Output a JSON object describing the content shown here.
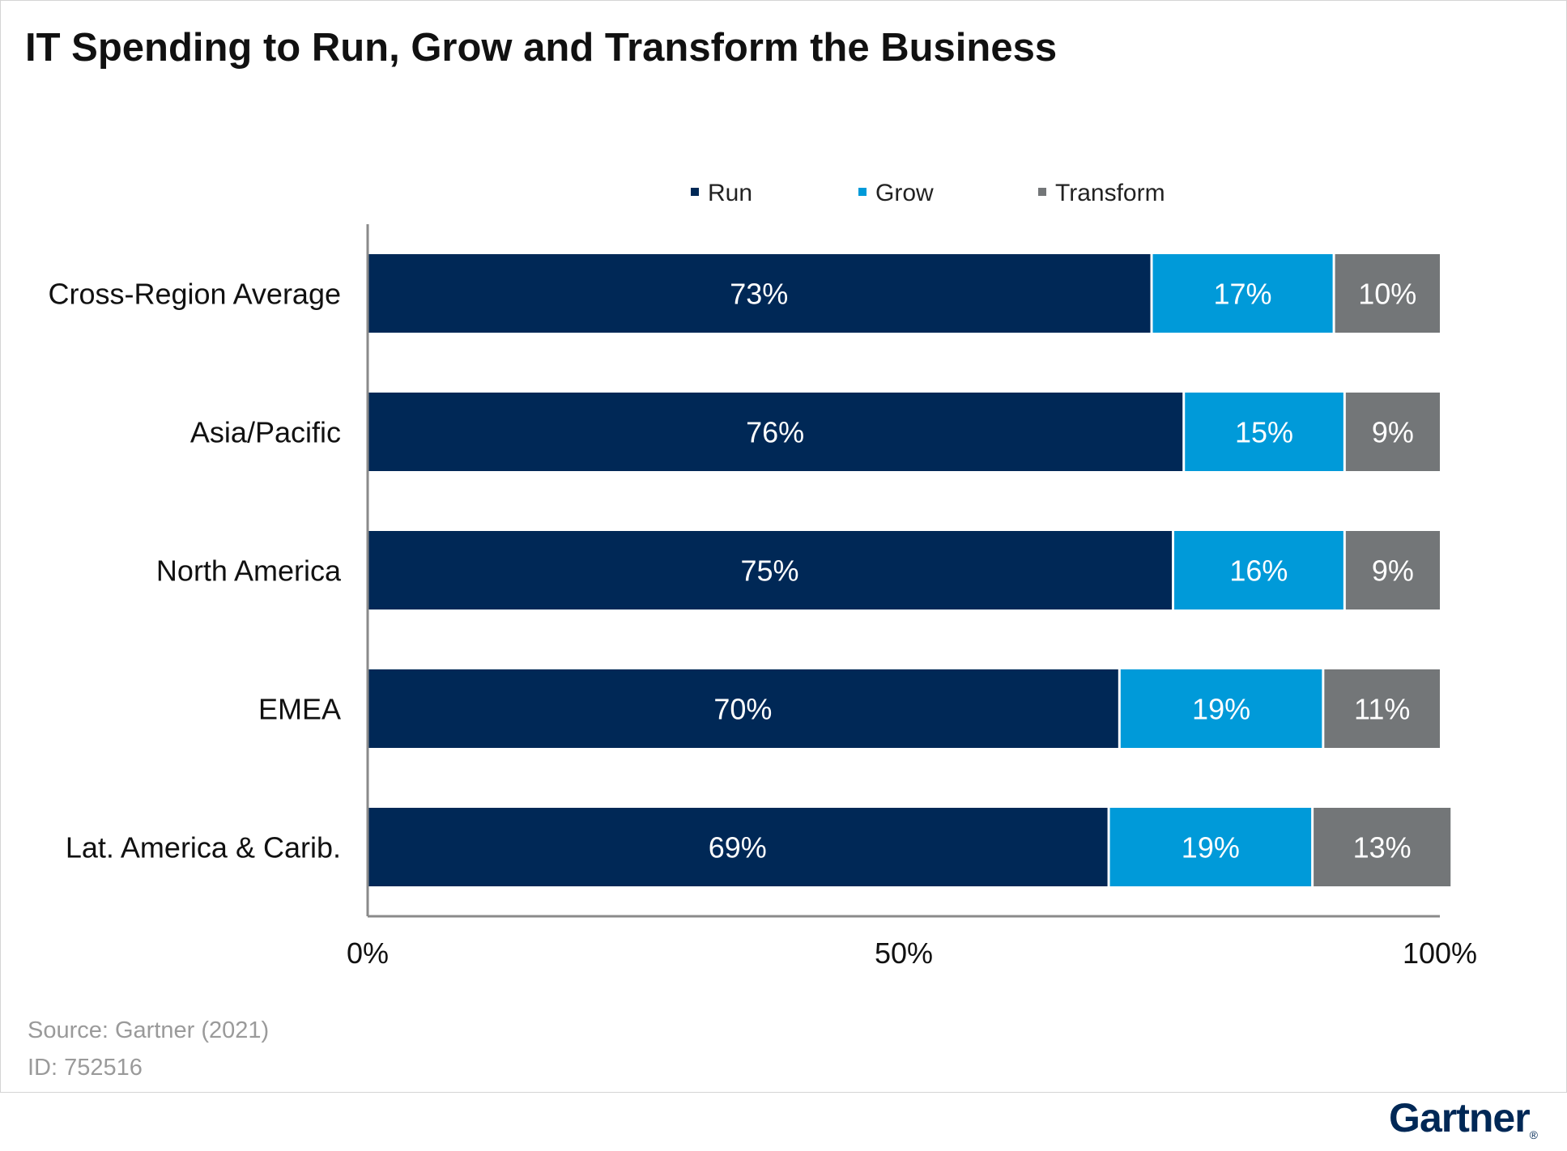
{
  "chart_data": {
    "type": "bar",
    "orientation": "horizontal",
    "stacked": true,
    "title": "IT Spending to Run, Grow and Transform the Business",
    "categories": [
      "Cross-Region Average",
      "Asia/Pacific",
      "North America",
      "EMEA",
      "Lat. America & Carib."
    ],
    "series": [
      {
        "name": "Run",
        "color": "#002856",
        "values": [
          73,
          76,
          75,
          70,
          69
        ],
        "labels": [
          "73%",
          "76%",
          "75%",
          "70%",
          "69%"
        ]
      },
      {
        "name": "Grow",
        "color": "#009ad9",
        "values": [
          17,
          15,
          16,
          19,
          19
        ],
        "labels": [
          "17%",
          "15%",
          "16%",
          "19%",
          "19%"
        ]
      },
      {
        "name": "Transform",
        "color": "#737678",
        "values": [
          10,
          9,
          9,
          11,
          13
        ],
        "labels": [
          "10%",
          "9%",
          "9%",
          "11%",
          "13%"
        ]
      }
    ],
    "xlim": [
      0,
      100
    ],
    "x_ticks": [
      0,
      50,
      100
    ],
    "x_tick_labels": [
      "0%",
      "50%",
      "100%"
    ],
    "legend_position": "top",
    "grid": false
  },
  "footer": {
    "source": "Source: Gartner (2021)",
    "id": "ID: 752516"
  },
  "brand": {
    "logo_text": "Gartner",
    "logo_mark": "®",
    "color": "#002856"
  }
}
